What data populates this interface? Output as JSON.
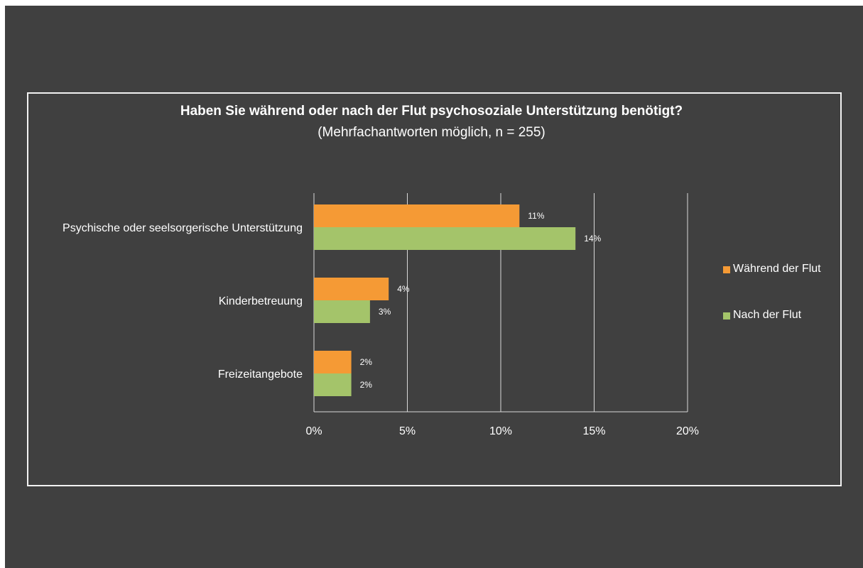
{
  "chart_data": {
    "type": "bar",
    "orientation": "horizontal",
    "title": "Haben Sie während oder nach der Flut psychosoziale Unterstützung benötigt?",
    "subtitle": "(Mehrfachantworten möglich, n = 255)",
    "categories": [
      "Psychische oder seelsorgerische Unterstützung",
      "Kinderbetreuung",
      "Freizeitangebote"
    ],
    "series": [
      {
        "name": "Während der Flut",
        "color": "#f59a35",
        "values": [
          11,
          4,
          2
        ],
        "labels": [
          "11%",
          "4%",
          "2%"
        ]
      },
      {
        "name": "Nach der Flut",
        "color": "#a4c46a",
        "values": [
          14,
          3,
          2
        ],
        "labels": [
          "14%",
          "3%",
          "2%"
        ]
      }
    ],
    "xlim": [
      0,
      20
    ],
    "xticks": [
      0,
      5,
      10,
      15,
      20
    ],
    "xtick_labels": [
      "0%",
      "5%",
      "10%",
      "15%",
      "20%"
    ],
    "grid": true,
    "legend_position": "right"
  },
  "colors": {
    "background": "#404040",
    "frame": "#f2f2f2",
    "text": "#ffffff",
    "gridline": "#d9d9d9"
  }
}
